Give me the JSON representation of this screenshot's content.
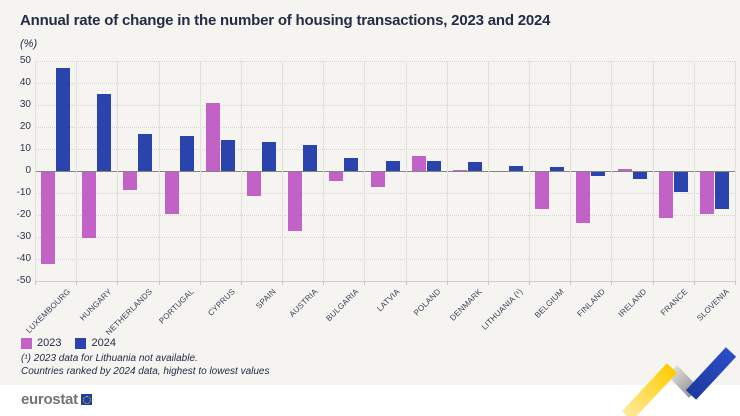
{
  "title": "Annual rate of change in the number of housing transactions, 2023 and 2024",
  "unit_label": "(%)",
  "chart_data": {
    "type": "bar",
    "title": "Annual rate of change in the number of housing transactions, 2023 and 2024",
    "ylabel": "(%)",
    "ylim": [
      -50,
      50
    ],
    "ytick_step": 10,
    "yticks": [
      50,
      40,
      30,
      20,
      10,
      0,
      -10,
      -20,
      -30,
      -40,
      -50
    ],
    "grid": true,
    "legend_position": "bottom-left",
    "categories": [
      "LUXEMBOURG",
      "HUNGARY",
      "NETHERLANDS",
      "PORTUGAL",
      "CYPRUS",
      "SPAIN",
      "AUSTRIA",
      "BULGARIA",
      "LATVIA",
      "POLAND",
      "DENMARK",
      "LITHUANIA (¹)",
      "BELGIUM",
      "FINLAND",
      "IRELAND",
      "FRANCE",
      "SLOVENIA"
    ],
    "series": [
      {
        "name": "2023",
        "color": "#C262C6",
        "values": [
          -42,
          -30,
          -8,
          -19,
          31,
          -11,
          -27,
          -4,
          -7,
          7,
          0.5,
          null,
          -17,
          -23,
          1,
          -21,
          -19
        ]
      },
      {
        "name": "2024",
        "color": "#2B44AD",
        "values": [
          47,
          35,
          17,
          16,
          14,
          13,
          12,
          6,
          4.5,
          4.4,
          4,
          2.5,
          2,
          -2,
          -3,
          -9,
          -17
        ]
      }
    ]
  },
  "legend": {
    "items": [
      {
        "label": "2023",
        "color": "#C262C6"
      },
      {
        "label": "2024",
        "color": "#2B44AD"
      }
    ]
  },
  "footnotes": {
    "line1": "(¹) 2023 data for Lithuania not available.",
    "line2": "Countries ranked by 2024 data, highest to lowest values"
  },
  "footer": {
    "logo_text": "eurostat",
    "eu_flag_icon": "eu-flag-icon",
    "zigzag_icon": "trend-zigzag-icon",
    "accent_yellow": "#FFD210",
    "accent_blue": "#2344B8",
    "accent_gray": "#B9B9B9"
  }
}
